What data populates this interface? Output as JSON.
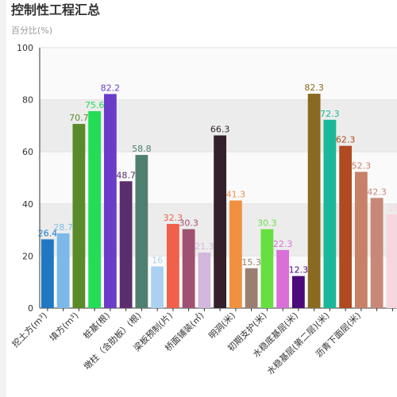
{
  "chart_data": {
    "type": "bar",
    "title": "控制性工程汇总",
    "subtitle": "百分比(%)",
    "categories": [
      "挖土方(m³)",
      null,
      "填方(m³)",
      null,
      "桩基(根)",
      null,
      "墩柱（含肋板）(根)",
      null,
      "梁板预制(片)",
      null,
      "桥面铺装(㎡)",
      null,
      "明洞(米)",
      null,
      "初期支护(米)",
      null,
      "水稳底基层(米)",
      null,
      "水稳基层(第二层)(米)",
      null,
      "沥青下面层(米)",
      null,
      null
    ],
    "values": [
      26.4,
      28.7,
      70.7,
      75.6,
      82.2,
      48.7,
      58.8,
      16,
      32.3,
      30.3,
      21.3,
      66.3,
      41.3,
      15.3,
      30.3,
      22.3,
      12.3,
      82.3,
      72.3,
      62.3,
      52.3,
      42.3,
      36
    ],
    "colors": [
      "#1f78c1",
      "#7cb9e8",
      "#5a8a2a",
      "#22dd55",
      "#6a3cc8",
      "#5c2d6e",
      "#4f7f6e",
      "#aad2f0",
      "#f0604a",
      "#a05070",
      "#d2b8dc",
      "#33202a",
      "#f09040",
      "#9a7f70",
      "#66e040",
      "#d870d8",
      "#4a0a7a",
      "#8a6a20",
      "#1ab898",
      "#b04a20",
      "#c88068",
      "#c88878",
      "#f5d8de"
    ],
    "ylim": [
      0,
      100
    ],
    "yticks": [
      0,
      20,
      40,
      60,
      80,
      100
    ],
    "grid": true
  }
}
